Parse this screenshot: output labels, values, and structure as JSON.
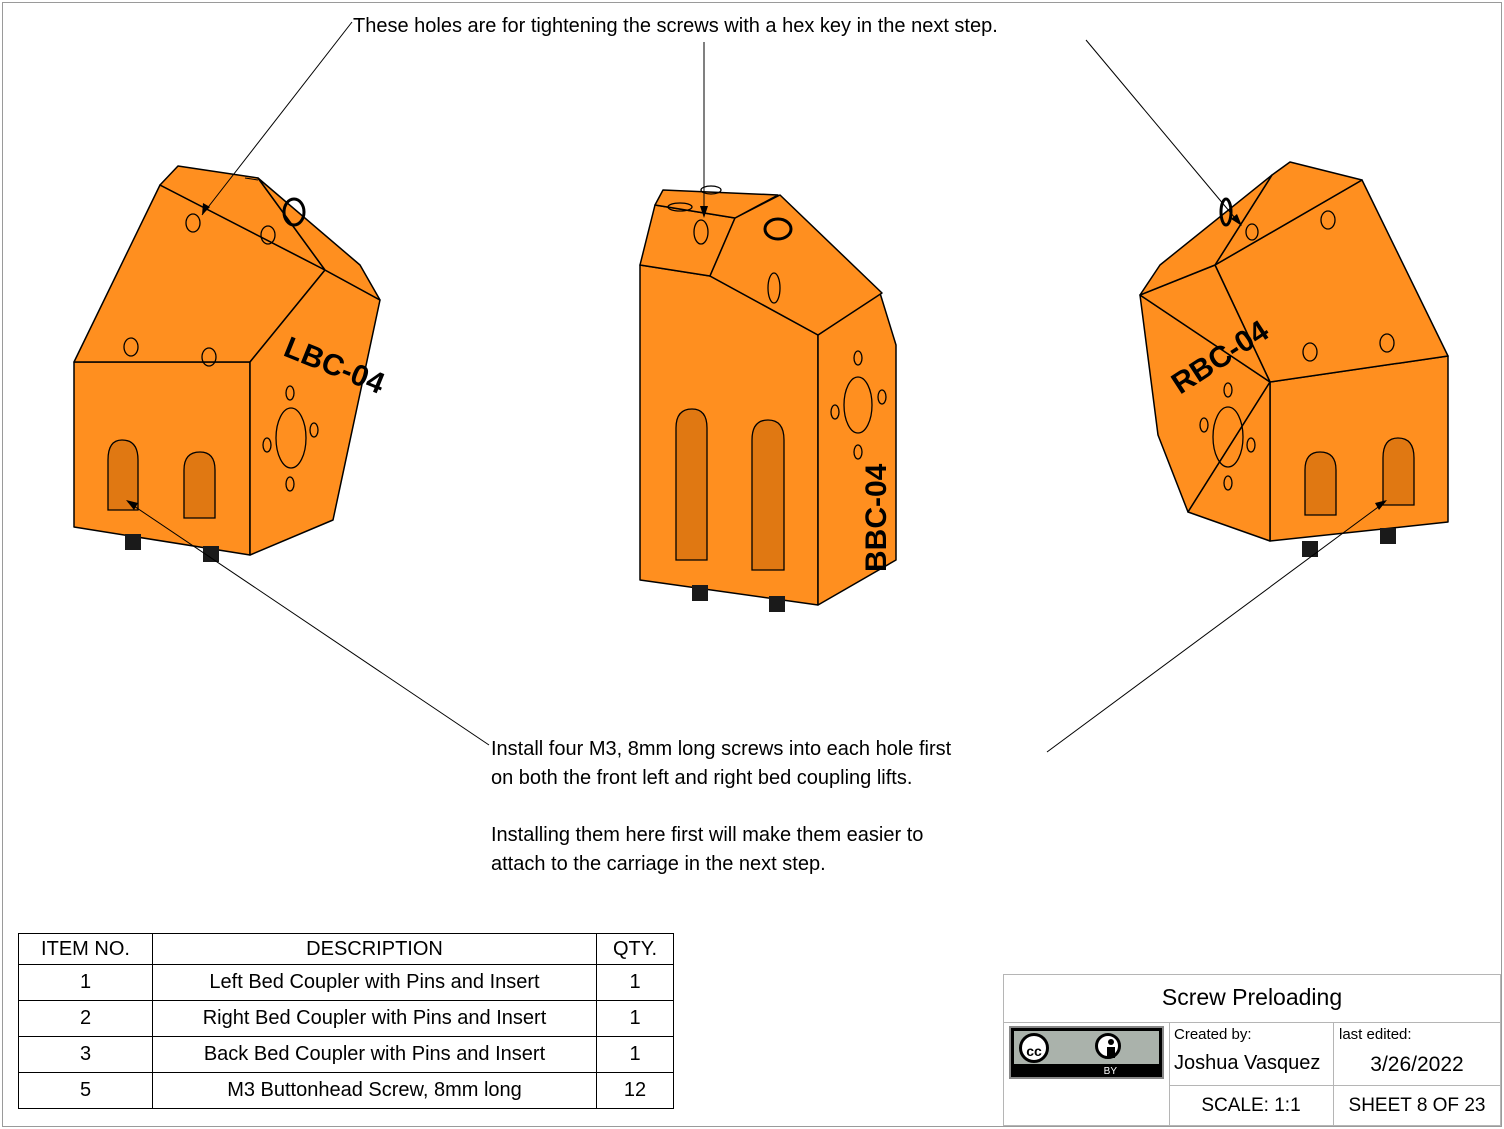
{
  "notes": {
    "top": "These holes are for tightening the screws with a hex key in the next step.",
    "install_line1": "Install four M3, 8mm long screws into each hole first",
    "install_line2": "on both the front left and right bed coupling lifts.",
    "install_line3": "Installing them here first will make them easier to",
    "install_line4": "attach to the carriage in the next step."
  },
  "parts": {
    "left_label": "LBC-04",
    "back_label": "BBC-04",
    "right_label": "RBC-04",
    "part_color": "#FF8F1F"
  },
  "bom": {
    "headers": [
      "ITEM NO.",
      "DESCRIPTION",
      "QTY."
    ],
    "rows": [
      [
        "1",
        "Left Bed Coupler with Pins and Insert",
        "1"
      ],
      [
        "2",
        "Right Bed Coupler with Pins and Insert",
        "1"
      ],
      [
        "3",
        "Back Bed Coupler with Pins and Insert",
        "1"
      ],
      [
        "5",
        "M3 Buttonhead Screw, 8mm long",
        "12"
      ]
    ]
  },
  "title_block": {
    "title": "Screw Preloading",
    "license_cc": "cc",
    "license_by": "BY",
    "created_by_label": "Created by:",
    "author": "Joshua Vasquez",
    "last_edited_label": "last edited:",
    "date": "3/26/2022",
    "scale": "SCALE: 1:1",
    "sheet": "SHEET 8 OF 23"
  }
}
